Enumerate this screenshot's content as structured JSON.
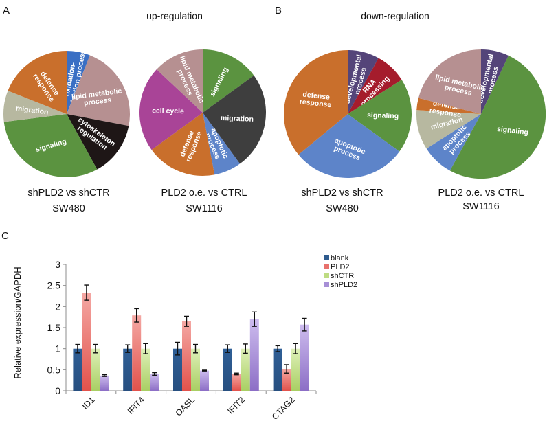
{
  "figure": {
    "panels": {
      "A": "A",
      "B": "B",
      "C": "C"
    },
    "titles": {
      "up": "up-regulation",
      "down": "down-regulation"
    }
  },
  "chart_data": [
    {
      "type": "pie",
      "panel": "A",
      "section": "up-regulation",
      "caption_line1": "shPLD2 vs shCTR",
      "caption_line2": "SW480",
      "slices": [
        {
          "label": "oxidation-reduction process",
          "lines": [
            "oxidation-",
            "reduction process"
          ],
          "value": 6,
          "color": "#3a6fc4"
        },
        {
          "label": "lipid metabolic process",
          "lines": [
            "lipid metabolic",
            "process"
          ],
          "value": 22,
          "color": "#b69091"
        },
        {
          "label": "cytoskeleton regulation",
          "lines": [
            "cytoskeleton",
            "regulation"
          ],
          "value": 14,
          "color": "#1e1616"
        },
        {
          "label": "signaling",
          "lines": [
            "signaling"
          ],
          "value": 31,
          "color": "#5b9340"
        },
        {
          "label": "migration",
          "lines": [
            "migration"
          ],
          "value": 8,
          "color": "#b7b8a0"
        },
        {
          "label": "defense response",
          "lines": [
            "defense",
            "response"
          ],
          "value": 19,
          "color": "#c96f2c"
        }
      ]
    },
    {
      "type": "pie",
      "panel": "A",
      "section": "up-regulation",
      "caption_line1": "PLD2 o.e. vs CTRL",
      "caption_line2": "SW1116",
      "slices": [
        {
          "label": "signaling",
          "lines": [
            "signaling"
          ],
          "value": 15,
          "color": "#5b9340"
        },
        {
          "label": "migration",
          "lines": [
            "migration"
          ],
          "value": 25,
          "color": "#3e3e3e"
        },
        {
          "label": "apoptotic process",
          "lines": [
            "apoptotic",
            "process"
          ],
          "value": 7,
          "color": "#5d84c9"
        },
        {
          "label": "defense response",
          "lines": [
            "defense",
            "response"
          ],
          "value": 18,
          "color": "#c96f2c"
        },
        {
          "label": "cell cycle",
          "lines": [
            "cell cycle"
          ],
          "value": 22,
          "color": "#a94497"
        },
        {
          "label": "lipid metabolic process",
          "lines": [
            "lipid metabolic",
            "process"
          ],
          "value": 13,
          "color": "#b69091"
        }
      ]
    },
    {
      "type": "pie",
      "panel": "B",
      "section": "down-regulation",
      "caption_line1": "shPLD2 vs shCTR",
      "caption_line2": "SW480",
      "slices": [
        {
          "label": "developmental process",
          "lines": [
            "developmental",
            "process"
          ],
          "value": 8,
          "color": "#544479"
        },
        {
          "label": "RNA processing",
          "lines": [
            "RNA",
            "processing"
          ],
          "value": 8,
          "color": "#a51c2c"
        },
        {
          "label": "signaling",
          "lines": [
            "signaling"
          ],
          "value": 19,
          "color": "#5b9340"
        },
        {
          "label": "apoptotic process",
          "lines": [
            "apoptotic",
            "process"
          ],
          "value": 29,
          "color": "#5d84c9"
        },
        {
          "label": "defense response",
          "lines": [
            "defense",
            "response"
          ],
          "value": 36,
          "color": "#c96f2c"
        }
      ]
    },
    {
      "type": "pie",
      "panel": "B",
      "section": "down-regulation",
      "caption_line1": "PLD2 o.e. vs CTRL",
      "caption_line2": "SW1116",
      "slices": [
        {
          "label": "developmental process",
          "lines": [
            "developmental",
            "process"
          ],
          "value": 7,
          "color": "#544479"
        },
        {
          "label": "signaling",
          "lines": [
            "signaling"
          ],
          "value": 51,
          "color": "#5b9340"
        },
        {
          "label": "apoptotic process",
          "lines": [
            "apoptotic",
            "process"
          ],
          "value": 8,
          "color": "#5d84c9"
        },
        {
          "label": "migration",
          "lines": [
            "migration"
          ],
          "value": 10,
          "color": "#b7b8a0"
        },
        {
          "label": "defense response",
          "lines": [
            "defense",
            "response"
          ],
          "value": 3,
          "color": "#c96f2c"
        },
        {
          "label": "lipid metabolic process",
          "lines": [
            "lipid metabolic",
            "process"
          ],
          "value": 21,
          "color": "#b69091"
        }
      ]
    },
    {
      "type": "bar",
      "panel": "C",
      "title": "",
      "xlabel": "",
      "ylabel": "Relative expression/GAPDH",
      "ylim": [
        0,
        3
      ],
      "yticks": [
        "0",
        "0.5",
        "1",
        "1.5",
        "2",
        "2.5",
        "3"
      ],
      "ytick_values": [
        0,
        0.5,
        1,
        1.5,
        2,
        2.5,
        3
      ],
      "grid": false,
      "legend_position": "top-right",
      "categories": [
        "ID1",
        "IFIT4",
        "OASL",
        "IFIT2",
        "CTAG2"
      ],
      "series": [
        {
          "name": "blank",
          "color": "#2e5b8e",
          "values": [
            1.0,
            1.0,
            1.0,
            1.0,
            1.0
          ],
          "errors": [
            0.1,
            0.09,
            0.15,
            0.09,
            0.07
          ]
        },
        {
          "name": "PLD2",
          "color": "#e8716c",
          "values": [
            2.33,
            1.79,
            1.65,
            0.4,
            0.52
          ],
          "errors": [
            0.18,
            0.16,
            0.12,
            0.02,
            0.1
          ]
        },
        {
          "name": "shCTR",
          "color": "#bedc82",
          "values": [
            1.0,
            1.0,
            1.0,
            1.0,
            1.0
          ],
          "errors": [
            0.1,
            0.12,
            0.1,
            0.11,
            0.12
          ]
        },
        {
          "name": "shPLD2",
          "color": "#a78fd6",
          "values": [
            0.36,
            0.4,
            0.48,
            1.7,
            1.57
          ],
          "errors": [
            0.02,
            0.03,
            0.01,
            0.17,
            0.15
          ]
        }
      ]
    }
  ]
}
